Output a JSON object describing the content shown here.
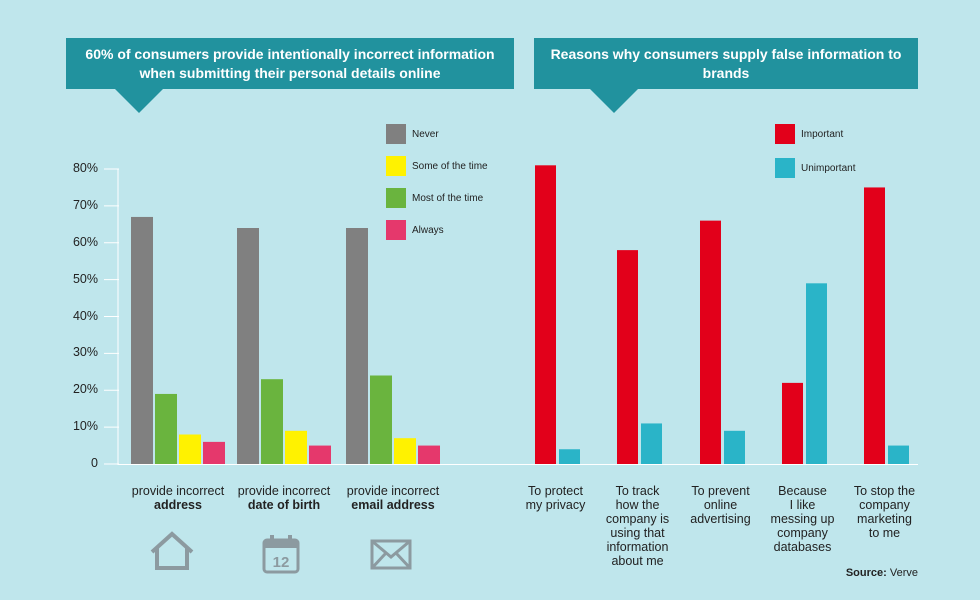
{
  "banners": {
    "left": "60% of consumers provide intentionally incorrect information when submitting their personal details online",
    "right": "Reasons why consumers supply false information to brands"
  },
  "source": {
    "label": "Source:",
    "value": "Verve"
  },
  "colors": {
    "background": "#bfe6ec",
    "banner": "#21929e",
    "never": "#808080",
    "some": "#fff200",
    "most": "#6ab43e",
    "always": "#e5386c",
    "important": "#e2001a",
    "unimportant": "#2ab4c8",
    "axis": "#ffffff",
    "icon": "#8c9aa0"
  },
  "chart_data": [
    {
      "type": "bar",
      "categories_plain": [
        "provide incorrect",
        "provide incorrect",
        "provide incorrect"
      ],
      "categories_bold": [
        "address",
        "date of birth",
        "email address"
      ],
      "categories_plain_suffix": [
        "",
        "",
        ""
      ],
      "category_icons": [
        "house-icon",
        "calendar-icon",
        "envelope-icon"
      ],
      "calendar_number": "12",
      "series": [
        {
          "name": "Never",
          "values": [
            67,
            64,
            64
          ]
        },
        {
          "name": "Some of the time",
          "values": [
            8,
            9,
            7
          ]
        },
        {
          "name": "Most of the time",
          "values": [
            19,
            23,
            24
          ]
        },
        {
          "name": "Always",
          "values": [
            6,
            5,
            5
          ]
        }
      ],
      "bar_order": [
        "Never",
        "Most of the time",
        "Some of the time",
        "Always"
      ],
      "yticks": [
        "0",
        "10%",
        "20%",
        "30%",
        "40%",
        "50%",
        "60%",
        "70%",
        "80%"
      ],
      "ylim": [
        0,
        80
      ],
      "legend": "top-right"
    },
    {
      "type": "bar",
      "categories": [
        "To protect my privacy",
        "To track how the company is using that information about me",
        "To prevent online advertising",
        "Because I like messing up company databases",
        "To stop the company marketing to me"
      ],
      "category_lines": [
        [
          "To protect",
          "my privacy"
        ],
        [
          "To track",
          "how the",
          "company is",
          "using that",
          "information",
          "about me"
        ],
        [
          "To prevent",
          "online",
          "advertising"
        ],
        [
          "Because",
          "I like",
          "messing up",
          "company",
          "databases"
        ],
        [
          "To stop the",
          "company",
          "marketing",
          "to me"
        ]
      ],
      "series": [
        {
          "name": "Important",
          "values": [
            81,
            58,
            66,
            22,
            75
          ]
        },
        {
          "name": "Unimportant",
          "values": [
            4,
            11,
            9,
            49,
            5
          ]
        }
      ],
      "ylim": [
        0,
        80
      ],
      "legend": "top-right"
    }
  ]
}
